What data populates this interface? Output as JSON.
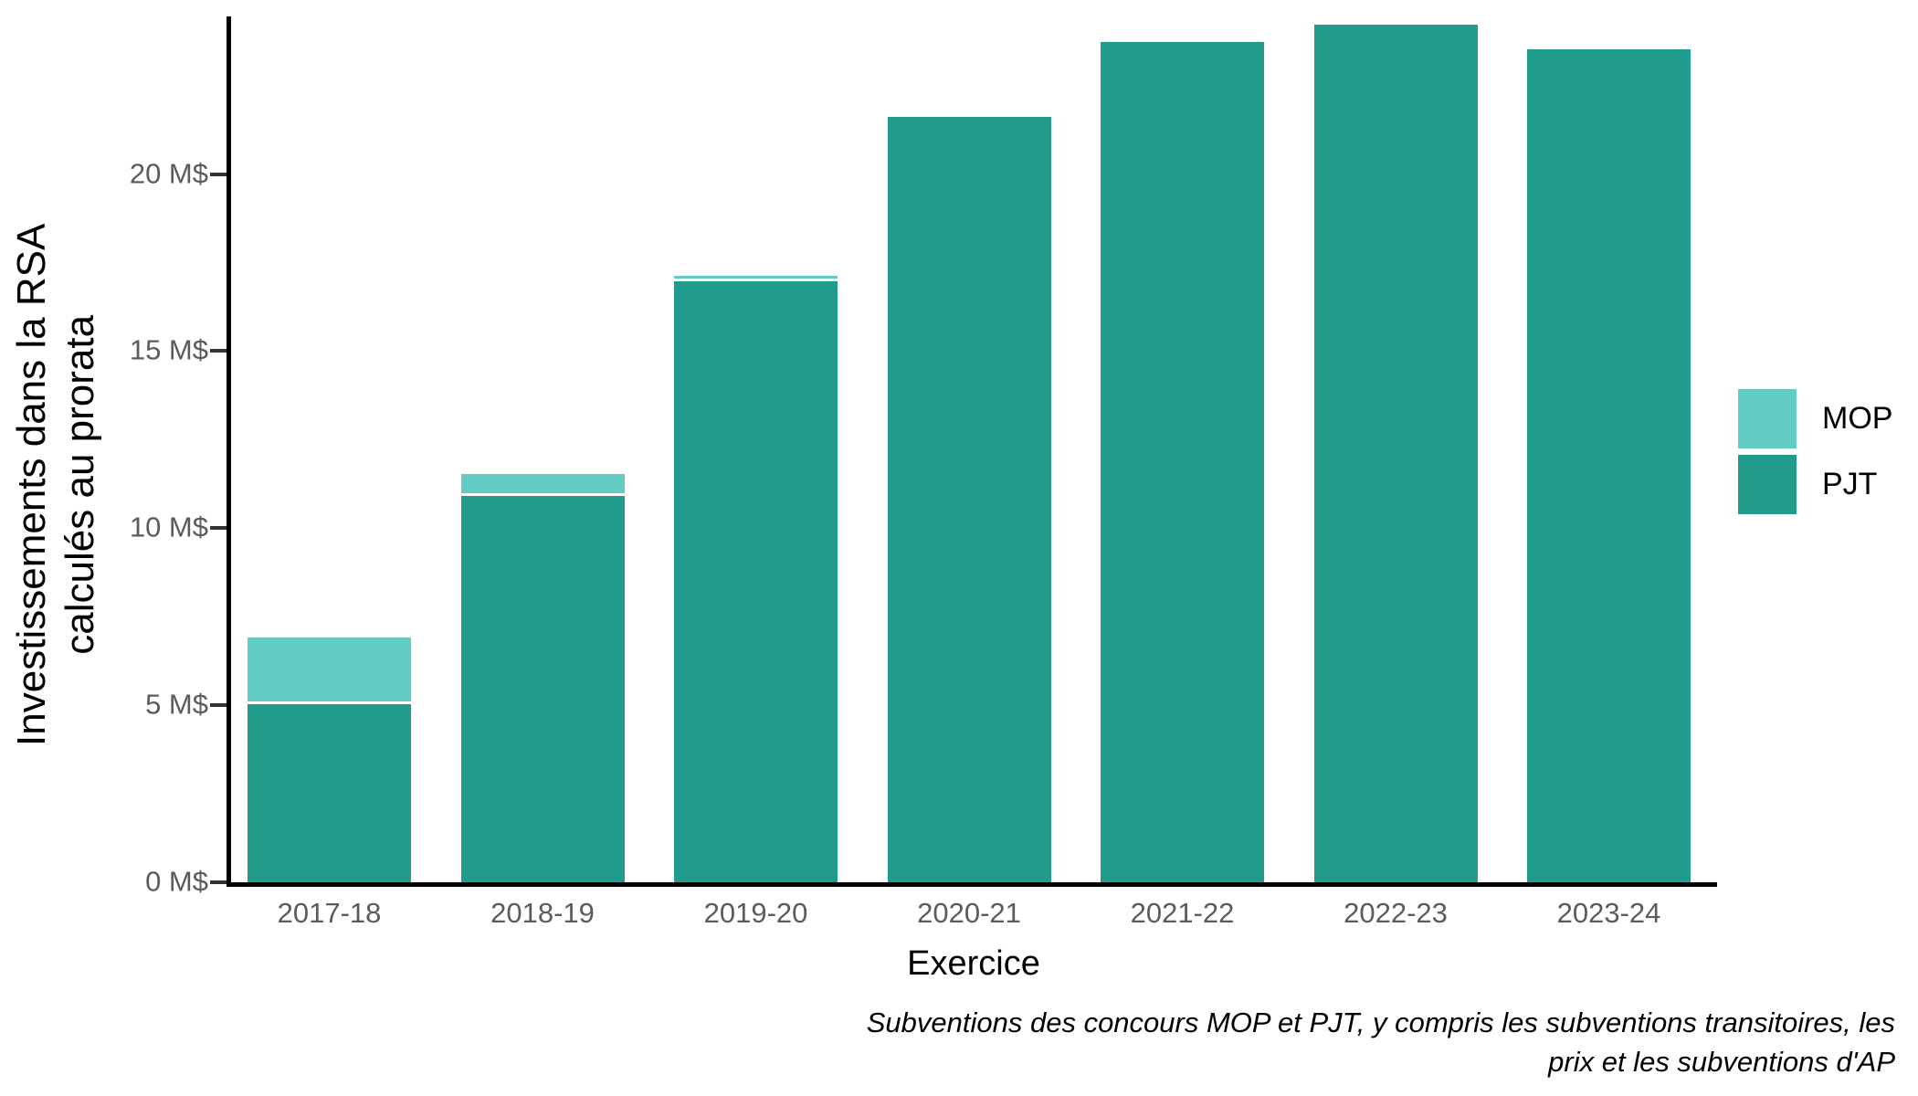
{
  "figure": {
    "background": "#ffffff",
    "ylabel_line1": "Investissements dans la RSA",
    "ylabel_line2": "calculés au prorata",
    "xlabel": "Exercice",
    "caption_line1": "Subventions des concours MOP et PJT, y compris les subventions transitoires, les",
    "caption_line2": "prix et les subventions d'AP"
  },
  "chart_data": {
    "type": "bar",
    "stacked": true,
    "title": "",
    "xlabel": "Exercice",
    "ylabel": "Investissements dans la RSA calculés au prorata",
    "caption": "Subventions des concours MOP et PJT, y compris les subventions transitoires, les prix et les subventions d'AP",
    "categories": [
      "2017-18",
      "2018-19",
      "2019-20",
      "2020-21",
      "2021-22",
      "2022-23",
      "2023-24"
    ],
    "series": [
      {
        "name": "MOP",
        "color": "#62cbc4",
        "values": [
          1.9,
          0.6,
          0.15,
          0,
          0,
          0,
          0
        ]
      },
      {
        "name": "PJT",
        "color": "#219b8b",
        "values": [
          5.1,
          11.0,
          17.05,
          21.7,
          23.8,
          24.3,
          23.6
        ]
      }
    ],
    "totals": [
      7.0,
      11.6,
      17.2,
      21.7,
      23.8,
      24.3,
      23.6
    ],
    "unit": "M$",
    "yticks": [
      {
        "value": 0,
        "label": "0 M$"
      },
      {
        "value": 5,
        "label": "5 M$"
      },
      {
        "value": 10,
        "label": "10 M$"
      },
      {
        "value": 15,
        "label": "15 M$"
      },
      {
        "value": 20,
        "label": "20 M$"
      }
    ],
    "ylim": [
      0,
      24.4
    ],
    "grid": false,
    "legend_position": "right",
    "axis_color": "#000000",
    "tick_label_color": "#5b5b5b"
  }
}
